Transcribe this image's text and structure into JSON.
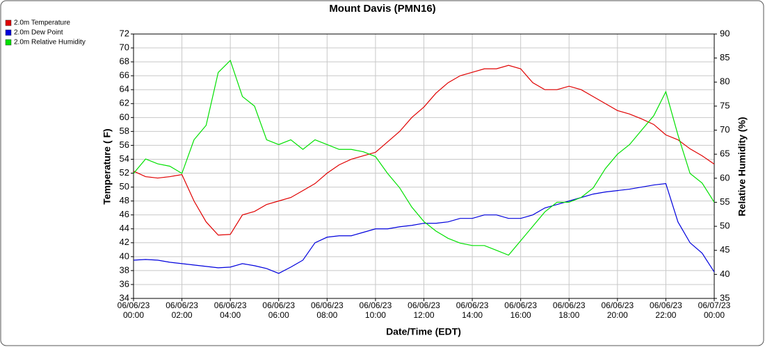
{
  "chart_data": {
    "type": "line",
    "title": "Mount Davis (PMN16)",
    "x_label": "Date/Time (EDT)",
    "y_label": "Temperature ( F)",
    "y2_label": "Relative Humidity (%)",
    "x": [
      0,
      0.5,
      1,
      1.5,
      2,
      2.5,
      3,
      3.5,
      4,
      4.5,
      5,
      5.5,
      6,
      6.5,
      7,
      7.5,
      8,
      8.5,
      9,
      9.5,
      10,
      10.5,
      11,
      11.5,
      12,
      12.5,
      13,
      13.5,
      14,
      14.5,
      15,
      15.5,
      16,
      16.5,
      17,
      17.5,
      18,
      18.5,
      19,
      19.5,
      20,
      20.5,
      21,
      21.5,
      22,
      22.5,
      23,
      23.5,
      24
    ],
    "xlim": [
      0,
      24
    ],
    "xticks": [
      {
        "value": 0,
        "label": "06/06/23 00:00"
      },
      {
        "value": 2,
        "label": "06/06/23 02:00"
      },
      {
        "value": 4,
        "label": "06/06/23 04:00"
      },
      {
        "value": 6,
        "label": "06/06/23 06:00"
      },
      {
        "value": 8,
        "label": "06/06/23 08:00"
      },
      {
        "value": 10,
        "label": "06/06/23 10:00"
      },
      {
        "value": 12,
        "label": "06/06/23 12:00"
      },
      {
        "value": 14,
        "label": "06/06/23 14:00"
      },
      {
        "value": 16,
        "label": "06/06/23 16:00"
      },
      {
        "value": 18,
        "label": "06/06/23 18:00"
      },
      {
        "value": 20,
        "label": "06/06/23 20:00"
      },
      {
        "value": 22,
        "label": "06/06/23 22:00"
      },
      {
        "value": 24,
        "label": "06/07/23 00:00"
      }
    ],
    "ylim": [
      34,
      72
    ],
    "yticks": [
      34,
      36,
      38,
      40,
      42,
      44,
      46,
      48,
      50,
      52,
      54,
      56,
      58,
      60,
      62,
      64,
      66,
      68,
      70,
      72
    ],
    "y2lim": [
      35,
      90
    ],
    "y2ticks": [
      35,
      40,
      45,
      50,
      55,
      60,
      65,
      70,
      75,
      80,
      85,
      90
    ],
    "grid": true,
    "legend": "top-left",
    "series": [
      {
        "name": "2.0m Temperature",
        "color": "#e00000",
        "values": [
          52.3,
          51.5,
          51.3,
          51.5,
          51.8,
          48.0,
          45,
          43.1,
          43.2,
          46,
          46.5,
          47.5,
          48,
          48.5,
          49.5,
          50.5,
          52,
          53.2,
          54,
          54.5,
          55,
          56.5,
          58,
          60,
          61.5,
          63.5,
          65,
          66,
          66.5,
          67,
          67,
          67.5,
          67,
          65,
          64,
          64,
          64.5,
          64,
          63,
          62,
          61,
          60.5,
          59.8,
          59,
          57.5,
          56.8,
          55.5,
          54.5,
          53.3
        ]
      },
      {
        "name": "2.0m Dew Point",
        "color": "#0000dd",
        "values": [
          39.5,
          39.6,
          39.5,
          39.2,
          39.0,
          38.8,
          38.6,
          38.4,
          38.5,
          39,
          38.7,
          38.3,
          37.6,
          38.5,
          39.5,
          42,
          42.8,
          43,
          43,
          43.5,
          44,
          44,
          44.3,
          44.5,
          44.8,
          44.8,
          45,
          45.5,
          45.5,
          46,
          46,
          45.5,
          45.5,
          46,
          47,
          47.5,
          48,
          48.5,
          49,
          49.3,
          49.5,
          49.7,
          50,
          50.3,
          50.5,
          45,
          42,
          40.5,
          37.8
        ]
      },
      {
        "name": "2.0m Relative Humidity",
        "color": "#00e000",
        "axis": "y2",
        "values": [
          61,
          64,
          63,
          62.5,
          61,
          68,
          71,
          82,
          84.5,
          77,
          75,
          68,
          67,
          68,
          66,
          68,
          67,
          66,
          66,
          65.5,
          64.5,
          61,
          58,
          54,
          51,
          49,
          47.5,
          46.5,
          46,
          46,
          45,
          44,
          47,
          50,
          53,
          55,
          55,
          56,
          58,
          62,
          65,
          67,
          70,
          73,
          78,
          69,
          61,
          59,
          55
        ]
      }
    ]
  }
}
